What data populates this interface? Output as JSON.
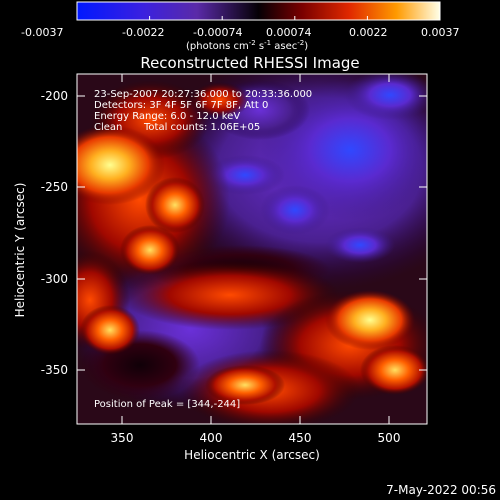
{
  "colorbar": {
    "ticks": [
      "-0.0037",
      "-0.0022",
      "-0.00074",
      "0.00074",
      "0.0022",
      "0.0037"
    ],
    "units_prefix": "(photons cm",
    "units_exp1": "-2",
    "units_mid1": " s",
    "units_exp2": "-1",
    "units_mid2": " asec",
    "units_exp3": "-2",
    "units_suffix": ")"
  },
  "title": "Reconstructed RHESSI Image",
  "info": {
    "line1": "23-Sep-2007 20:27:36.000 to 20:33:36.000",
    "line2": "Detectors: 3F 4F 5F 6F 7F 8F, Att 0",
    "line3": "Energy Range: 6.0 - 12.0 keV",
    "line4_a": "Clean",
    "line4_b": "Total counts: 1.06E+05",
    "peak": "Position of Peak = [344,-244]"
  },
  "axes": {
    "xlabel": "Heliocentric X (arcsec)",
    "ylabel": "Heliocentric Y (arcsec)",
    "xticks": [
      "350",
      "400",
      "450",
      "500"
    ],
    "yticks": [
      "-200",
      "-250",
      "-300",
      "-350"
    ]
  },
  "footer_timestamp": "7-May-2022 00:56",
  "colors": {
    "background": "#000000",
    "colorbar_stops": [
      "#0010ff",
      "#5a30c8",
      "#400060",
      "#000000",
      "#700000",
      "#e03000",
      "#ffa000",
      "#ffffe0"
    ],
    "hot_high": "#ffe070",
    "hot_mid": "#e83000",
    "cold_mid": "#5a28c0",
    "cold_low": "#3050ff"
  }
}
